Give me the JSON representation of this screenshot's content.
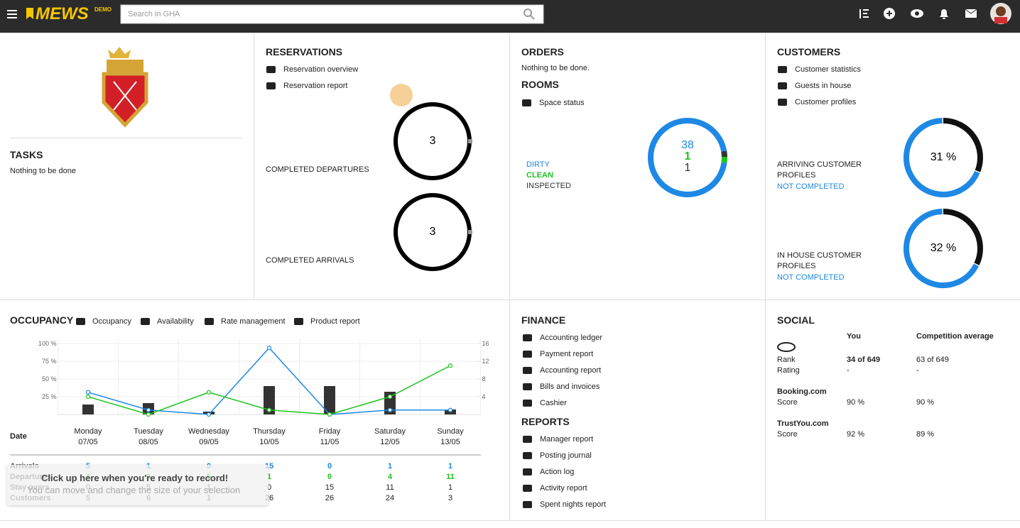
{
  "header": {
    "logo": "MEWS",
    "badge": "DEMO",
    "search_placeholder": "Search in GHA"
  },
  "tasks": {
    "title": "TASKS",
    "text": "Nothing to be done"
  },
  "reservations": {
    "title": "RESERVATIONS",
    "links": [
      "Reservation overview",
      "Reservation report"
    ],
    "donuts": [
      {
        "label": "COMPLETED DEPARTURES",
        "value": 3
      },
      {
        "label": "COMPLETED ARRIVALS",
        "value": 3
      }
    ]
  },
  "orders": {
    "title": "ORDERS",
    "text": "Nothing to be done."
  },
  "rooms": {
    "title": "ROOMS",
    "links": [
      "Space status"
    ],
    "series": [
      {
        "name": "DIRTY",
        "value": 38,
        "color": "#1e88e5"
      },
      {
        "name": "CLEAN",
        "value": 1,
        "color": "#1ec31e"
      },
      {
        "name": "INSPECTED",
        "value": 1,
        "color": "#333333"
      }
    ]
  },
  "customers": {
    "title": "CUSTOMERS",
    "links": [
      "Customer statistics",
      "Guests in house",
      "Customer profiles"
    ],
    "donuts": [
      {
        "label": "ARRIVING CUSTOMER PROFILES",
        "status": "NOT COMPLETED",
        "value": 31,
        "value_label": "31 %"
      },
      {
        "label": "IN HOUSE CUSTOMER PROFILES",
        "status": "NOT COMPLETED",
        "value": 32,
        "value_label": "32 %"
      }
    ]
  },
  "occupancy": {
    "title": "OCCUPANCY",
    "links": [
      "Occupancy",
      "Availability",
      "Rate management",
      "Product report"
    ],
    "date_label": "Date",
    "rows": [
      {
        "name": "Stay overs",
        "values": [
          0,
          5,
          1,
          0,
          15,
          11,
          1
        ]
      },
      {
        "name": "Customers",
        "values": [
          5,
          6,
          1,
          26,
          26,
          24,
          3
        ]
      }
    ]
  },
  "chart_data": {
    "type": "combo",
    "categories": [
      "Monday",
      "Tuesday",
      "Wednesday",
      "Thursday",
      "Friday",
      "Saturday",
      "Sunday"
    ],
    "dates": [
      "07/05",
      "08/05",
      "09/05",
      "10/05",
      "11/05",
      "12/05",
      "13/05"
    ],
    "ylim": [
      0,
      100
    ],
    "yticks": [
      {
        "value": 25,
        "label": "25 %"
      },
      {
        "value": 50,
        "label": "50 %"
      },
      {
        "value": 75,
        "label": "75 %"
      },
      {
        "value": 100,
        "label": "100 %"
      }
    ],
    "y2lim": [
      0,
      16
    ],
    "y2ticks": [
      4,
      8,
      12,
      16
    ],
    "grid": true,
    "series": [
      {
        "type": "bar",
        "color": "#333333",
        "values": [
          14,
          16,
          4,
          40,
          40,
          32,
          7
        ]
      },
      {
        "name": "Arrivals",
        "type": "line",
        "axis": "y2",
        "color": "#1e88e5",
        "values": [
          5,
          1,
          0,
          15,
          0,
          1,
          1
        ]
      },
      {
        "name": "Departures",
        "type": "line",
        "axis": "y2",
        "color": "#1ec31e",
        "values": [
          4,
          0,
          5,
          1,
          0,
          4,
          11
        ]
      }
    ]
  },
  "finance": {
    "title": "FINANCE",
    "links": [
      "Accounting ledger",
      "Payment report",
      "Accounting report",
      "Bills and invoices",
      "Cashier"
    ]
  },
  "reports": {
    "title": "REPORTS",
    "links": [
      "Manager report",
      "Posting journal",
      "Action log",
      "Activity report",
      "Spent nights report"
    ]
  },
  "social": {
    "title": "SOCIAL",
    "columns": [
      "You",
      "Competition average"
    ],
    "sections": [
      {
        "rows": [
          {
            "label": "Rank",
            "values": [
              "34 of 649",
              "63 of 649"
            ]
          },
          {
            "label": "Rating",
            "values": [
              "-",
              "-"
            ]
          }
        ]
      },
      {
        "name": "Booking.com",
        "rows": [
          {
            "label": "Score",
            "values": [
              "90 %",
              "90 %"
            ]
          }
        ]
      },
      {
        "name": "TrustYou.com",
        "rows": [
          {
            "label": "Score",
            "values": [
              "92 %",
              "89 %"
            ]
          }
        ]
      }
    ]
  },
  "tooltip": {
    "title": "Click up here when you're ready to record!",
    "text": "You can move and change the size of your selection"
  }
}
